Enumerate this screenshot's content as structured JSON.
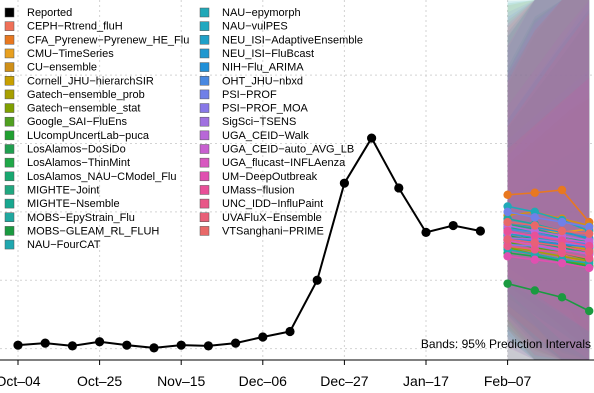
{
  "chart_data": {
    "type": "line",
    "title": "",
    "xlabel": "",
    "ylabel": "",
    "x_ticks": [
      "Oct–04",
      "Oct–25",
      "Nov–15",
      "Dec–06",
      "Dec–27",
      "Jan–17",
      "Feb–07"
    ],
    "x_tick_weeks": [
      0,
      3,
      6,
      9,
      12,
      15,
      18
    ],
    "y_ticks": [
      0,
      1,
      2,
      3,
      4
    ],
    "y_range": [
      -0.05,
      5.1
    ],
    "grid": true,
    "legend_position": "top-left",
    "annotation": "Bands: 95% Prediction Intervals",
    "reported": {
      "name": "Reported",
      "color": "#000000",
      "x_week": [
        0,
        1,
        2,
        3,
        4,
        5,
        6,
        7,
        8,
        9,
        10,
        11,
        12,
        13,
        14,
        15,
        16,
        17
      ],
      "values": [
        0.05,
        0.08,
        0.04,
        0.1,
        0.05,
        0.01,
        0.05,
        0.04,
        0.08,
        0.17,
        0.25,
        1.0,
        2.42,
        3.08,
        2.35,
        1.7,
        1.8,
        1.72
      ]
    },
    "forecast_weeks": [
      18,
      19,
      20,
      21
    ],
    "interval_range": [
      -0.45,
      5.3
    ],
    "series": [
      {
        "name": "CEPH−Rtrend_fluH",
        "color": "#f07058",
        "values": [
          1.58,
          1.5,
          1.38,
          1.2
        ]
      },
      {
        "name": "CFA_Pyrenew−Pyrenew_HE_Flu",
        "color": "#e87820",
        "values": [
          2.25,
          2.28,
          2.32,
          1.85
        ]
      },
      {
        "name": "CMU−TimeSeries",
        "color": "#e8a020",
        "values": [
          1.75,
          1.72,
          1.7,
          1.75
        ]
      },
      {
        "name": "CU−ensemble",
        "color": "#d09018",
        "values": [
          1.95,
          2.0,
          1.9,
          1.8
        ]
      },
      {
        "name": "Cornell_JHU−hierarchSIR",
        "color": "#c8a000",
        "values": [
          1.62,
          1.55,
          1.5,
          1.45
        ]
      },
      {
        "name": "Gatech−ensemble_prob",
        "color": "#a8a000",
        "values": [
          1.5,
          1.42,
          1.35,
          1.28
        ]
      },
      {
        "name": "Gatech−ensemble_stat",
        "color": "#80a000",
        "values": [
          1.48,
          1.38,
          1.3,
          1.22
        ]
      },
      {
        "name": "Google_SAI−FluEns",
        "color": "#50a020",
        "values": [
          1.55,
          1.48,
          1.4,
          1.3
        ]
      },
      {
        "name": "LUcompUncertLab−puca",
        "color": "#20a030",
        "values": [
          1.7,
          1.6,
          1.52,
          1.4
        ]
      },
      {
        "name": "LosAlamos−DoSiDo",
        "color": "#20a050",
        "values": [
          1.65,
          1.58,
          1.5,
          1.42
        ]
      },
      {
        "name": "LosAlamos−ThinMint",
        "color": "#20a848",
        "values": [
          1.4,
          1.35,
          1.28,
          1.2
        ]
      },
      {
        "name": "LosAlamos_NAU−CModel_Flu",
        "color": "#18a870",
        "values": [
          1.6,
          1.55,
          1.48,
          1.38
        ]
      },
      {
        "name": "MIGHTE−Joint",
        "color": "#20a880",
        "values": [
          1.82,
          1.75,
          1.65,
          1.55
        ]
      },
      {
        "name": "MIGHTE−Nsemble",
        "color": "#18a890",
        "values": [
          1.78,
          1.7,
          1.62,
          1.5
        ]
      },
      {
        "name": "MOBS−EpyStrain_Flu",
        "color": "#20a8a0",
        "values": [
          1.9,
          1.82,
          1.72,
          1.6
        ]
      },
      {
        "name": "MOBS−GLEAM_RL_FLUH",
        "color": "#1a9a40",
        "values": [
          0.95,
          0.85,
          0.75,
          0.55
        ]
      },
      {
        "name": "NAU−FourCAT",
        "color": "#20a8b0",
        "values": [
          1.45,
          1.38,
          1.3,
          1.25
        ]
      },
      {
        "name": "NAU−epymorph",
        "color": "#20a8b8",
        "values": [
          2.08,
          2.0,
          1.88,
          1.72
        ]
      },
      {
        "name": "NAU−vulPES",
        "color": "#20a8c0",
        "values": [
          1.72,
          1.66,
          1.58,
          1.48
        ]
      },
      {
        "name": "NEU_ISI−AdaptiveEnsemble",
        "color": "#20a0c8",
        "values": [
          1.68,
          1.62,
          1.55,
          1.48
        ]
      },
      {
        "name": "NEU_ISI−FluBcast",
        "color": "#2098d0",
        "values": [
          1.85,
          1.78,
          1.7,
          1.62
        ]
      },
      {
        "name": "NIH−Flu_ARIMA",
        "color": "#2090d8",
        "values": [
          1.6,
          1.58,
          1.52,
          1.5
        ]
      },
      {
        "name": "OHT_JHU−nbxd",
        "color": "#4888e0",
        "values": [
          1.75,
          1.7,
          1.6,
          1.52
        ]
      },
      {
        "name": "PSI−PROF",
        "color": "#7080e8",
        "values": [
          2.0,
          1.92,
          1.85,
          1.78
        ]
      },
      {
        "name": "PSI−PROF_MOA",
        "color": "#8878e8",
        "values": [
          1.52,
          1.5,
          1.44,
          1.4
        ]
      },
      {
        "name": "SigSci−TSENS",
        "color": "#a070e0",
        "values": [
          1.62,
          1.6,
          1.55,
          1.5
        ]
      },
      {
        "name": "UGA_CEID−Walk",
        "color": "#b868d8",
        "values": [
          1.8,
          1.72,
          1.65,
          1.58
        ]
      },
      {
        "name": "UGA_CEID−auto_AVG_LB",
        "color": "#c860d0",
        "values": [
          1.7,
          1.65,
          1.6,
          1.55
        ]
      },
      {
        "name": "UGA_flucast−INFLAenza",
        "color": "#d858c0",
        "values": [
          1.58,
          1.52,
          1.45,
          1.38
        ]
      },
      {
        "name": "UM−DeepOutbreak",
        "color": "#e050b0",
        "values": [
          1.35,
          1.3,
          1.25,
          1.18
        ]
      },
      {
        "name": "UMass−flusion",
        "color": "#e85098",
        "values": [
          1.72,
          1.65,
          1.58,
          1.5
        ]
      },
      {
        "name": "UNC_IDD−InfluPaint",
        "color": "#e85888",
        "values": [
          1.5,
          1.45,
          1.4,
          1.32
        ]
      },
      {
        "name": "UVAFluX−Ensemble",
        "color": "#e86078",
        "values": [
          1.6,
          1.55,
          1.5,
          1.42
        ]
      },
      {
        "name": "VTSanghani−PRIME",
        "color": "#e86868",
        "values": [
          1.85,
          1.8,
          1.72,
          1.68
        ]
      }
    ]
  }
}
